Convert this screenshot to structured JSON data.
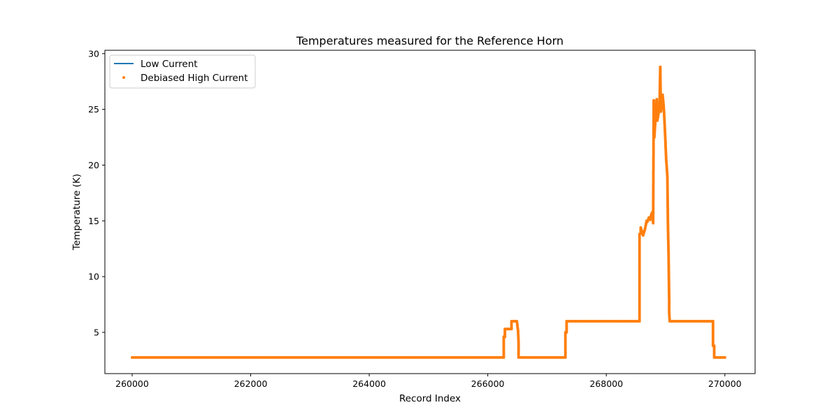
{
  "chart_data": {
    "type": "line",
    "title": "Temperatures measured for the Reference Horn",
    "xlabel": "Record Index",
    "ylabel": "Temperature (K)",
    "xlim": [
      259540,
      270510
    ],
    "ylim": [
      1.3,
      30.3
    ],
    "xticks": [
      260000,
      262000,
      264000,
      266000,
      268000,
      270000
    ],
    "yticks": [
      5,
      10,
      15,
      20,
      25,
      30
    ],
    "grid": false,
    "legend_position": "upper-left",
    "colors": {
      "low_current": "#1f77b4",
      "high_current": "#ff7f0e"
    },
    "legend": [
      {
        "label": "Low Current",
        "marker": "line",
        "color": "#1f77b4"
      },
      {
        "label": "Debiased High Current",
        "marker": "dot",
        "color": "#ff7f0e"
      }
    ],
    "series": [
      {
        "name": "Low Current",
        "style": "line",
        "x": [
          260000,
          266270,
          266270,
          266290,
          266290,
          266400,
          266400,
          266490,
          266510,
          266520,
          266520,
          267310,
          267310,
          267330,
          267330,
          268560,
          268560,
          268580,
          268580,
          268620,
          268650,
          268680,
          268690,
          268720,
          268740,
          268760,
          268780,
          268790,
          268800,
          268810,
          268830,
          268850,
          268860,
          268880,
          268900,
          268910,
          268920,
          268930,
          268950,
          268970,
          268990,
          269010,
          269030,
          269040,
          269050,
          269060,
          269060,
          269070,
          269800,
          269800,
          269820,
          269820,
          270000
        ],
        "y": [
          2.75,
          2.75,
          4.6,
          4.6,
          5.3,
          5.3,
          6.0,
          6.0,
          5.2,
          4.0,
          2.75,
          2.75,
          5.0,
          5.0,
          6.0,
          6.0,
          13.8,
          13.9,
          14.4,
          13.7,
          14.2,
          15.0,
          14.9,
          15.3,
          15.1,
          15.6,
          15.8,
          14.8,
          25.8,
          22.5,
          24.2,
          25.9,
          24.0,
          24.6,
          26.0,
          28.8,
          24.8,
          25.4,
          26.3,
          25.1,
          23.0,
          20.5,
          19.0,
          14.5,
          12.0,
          8.0,
          6.8,
          6.0,
          6.0,
          3.8,
          3.8,
          2.75,
          2.75
        ]
      },
      {
        "name": "Debiased High Current",
        "style": "scatter",
        "x": [
          260000,
          266270,
          266270,
          266290,
          266290,
          266400,
          266400,
          266490,
          266510,
          266520,
          266520,
          267310,
          267310,
          267330,
          267330,
          268560,
          268560,
          268580,
          268580,
          268620,
          268650,
          268680,
          268690,
          268720,
          268740,
          268760,
          268780,
          268790,
          268800,
          268810,
          268830,
          268850,
          268860,
          268880,
          268900,
          268910,
          268920,
          268930,
          268950,
          268970,
          268990,
          269010,
          269030,
          269040,
          269050,
          269060,
          269060,
          269070,
          269800,
          269800,
          269820,
          269820,
          270000
        ],
        "y": [
          2.75,
          2.75,
          4.6,
          4.6,
          5.3,
          5.3,
          6.0,
          6.0,
          5.2,
          4.0,
          2.75,
          2.75,
          5.0,
          5.0,
          6.0,
          6.0,
          13.8,
          13.9,
          14.4,
          13.7,
          14.2,
          15.0,
          14.9,
          15.3,
          15.1,
          15.6,
          15.8,
          14.8,
          25.8,
          22.5,
          24.2,
          25.9,
          24.0,
          24.6,
          26.0,
          28.8,
          24.8,
          25.4,
          26.3,
          25.1,
          23.0,
          20.5,
          19.0,
          14.5,
          12.0,
          8.0,
          6.8,
          6.0,
          6.0,
          3.8,
          3.8,
          2.75,
          2.75
        ]
      }
    ]
  }
}
